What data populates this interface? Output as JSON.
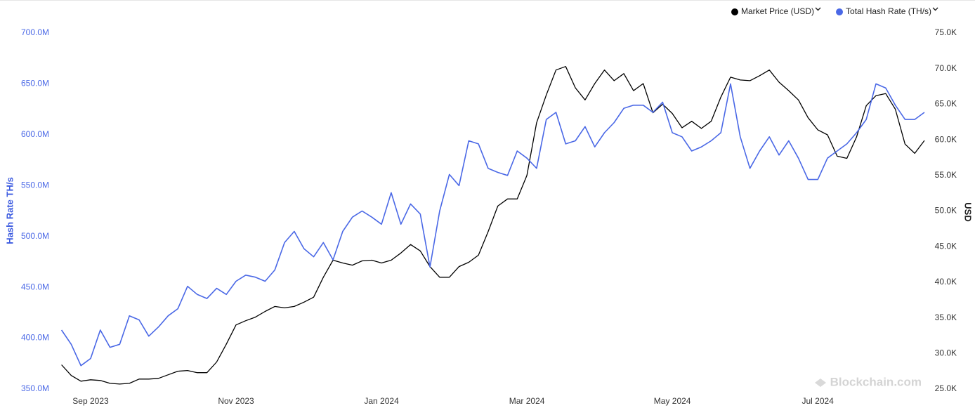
{
  "chart_data": {
    "type": "line",
    "categories": [
      null,
      null,
      null,
      "Sep 2023",
      null,
      null,
      null,
      null,
      null,
      null,
      null,
      null,
      null,
      null,
      null,
      null,
      null,
      null,
      "Nov 2023",
      null,
      null,
      null,
      null,
      null,
      null,
      null,
      null,
      null,
      null,
      null,
      null,
      null,
      null,
      "Jan 2024",
      null,
      null,
      null,
      null,
      null,
      null,
      null,
      null,
      null,
      null,
      null,
      null,
      null,
      null,
      "Mar 2024",
      null,
      null,
      null,
      null,
      null,
      null,
      null,
      null,
      null,
      null,
      null,
      null,
      null,
      null,
      "May 2024",
      null,
      null,
      null,
      null,
      null,
      null,
      null,
      null,
      null,
      null,
      null,
      null,
      null,
      null,
      "Jul 2024",
      null,
      null,
      null,
      null,
      null,
      null,
      null,
      null,
      null,
      null,
      null
    ],
    "series": [
      {
        "name": "Market Price (USD)",
        "color": "#000000",
        "axis": "y2",
        "values": [
          28400,
          26900,
          26100,
          26300,
          26200,
          25800,
          25700,
          25800,
          26400,
          26400,
          26500,
          27000,
          27500,
          27600,
          27300,
          27300,
          28800,
          31300,
          34000,
          34600,
          35100,
          35900,
          36600,
          36400,
          36600,
          37200,
          37900,
          40700,
          43100,
          42700,
          42400,
          43000,
          43100,
          42700,
          43100,
          44100,
          45300,
          44400,
          42200,
          40700,
          40700,
          42200,
          42800,
          43800,
          47100,
          50700,
          51700,
          51700,
          55000,
          62400,
          66300,
          69800,
          70300,
          67300,
          65600,
          67900,
          69800,
          68300,
          69300,
          66900,
          67900,
          63800,
          65000,
          63700,
          61700,
          62600,
          61600,
          62600,
          66000,
          68800,
          68400,
          68300,
          69000,
          69800,
          68100,
          66900,
          65600,
          63100,
          61400,
          60700,
          57700,
          57400,
          60400,
          64800,
          66200,
          66500,
          64300,
          59400,
          58100,
          59900
        ]
      },
      {
        "name": "Total Hash Rate (TH/s)",
        "color": "#4a68e6",
        "values": [
          408000000,
          394000000,
          373000000,
          380000000,
          408000000,
          391000000,
          394000000,
          422000000,
          418000000,
          402000000,
          411000000,
          422000000,
          429000000,
          451000000,
          443000000,
          439000000,
          449000000,
          443000000,
          456000000,
          462000000,
          460000000,
          456000000,
          467000000,
          494000000,
          505000000,
          488000000,
          480000000,
          494000000,
          477000000,
          505000000,
          519000000,
          525000000,
          519000000,
          512000000,
          543000000,
          512000000,
          532000000,
          522000000,
          470000000,
          525000000,
          561000000,
          550000000,
          594000000,
          591000000,
          567000000,
          563000000,
          560000000,
          584000000,
          577000000,
          567000000,
          615000000,
          622000000,
          591000000,
          594000000,
          608000000,
          588000000,
          602000000,
          612000000,
          626000000,
          629000000,
          629000000,
          622000000,
          632000000,
          602000000,
          598000000,
          584000000,
          588000000,
          594000000,
          602000000,
          650000000,
          598000000,
          567000000,
          584000000,
          598000000,
          580000000,
          594000000,
          577000000,
          556000000,
          556000000,
          577000000,
          584000000,
          591000000,
          602000000,
          615000000,
          650000000,
          646000000,
          629000000,
          615000000,
          615000000,
          622000000
        ]
      }
    ],
    "y_label": "Hash Rate TH/s",
    "y2_label": "USD",
    "ylim": [
      350000000,
      700000000
    ],
    "yticks": [
      {
        "value": 350000000,
        "label": "350.0M"
      },
      {
        "value": 400000000,
        "label": "400.0M"
      },
      {
        "value": 450000000,
        "label": "450.0M"
      },
      {
        "value": 500000000,
        "label": "500.0M"
      },
      {
        "value": 550000000,
        "label": "550.0M"
      },
      {
        "value": 600000000,
        "label": "600.0M"
      },
      {
        "value": 650000000,
        "label": "650.0M"
      },
      {
        "value": 700000000,
        "label": "700.0M"
      }
    ],
    "y2lim": [
      25000,
      75000
    ],
    "y2ticks": [
      {
        "value": 25000,
        "label": "25.0K"
      },
      {
        "value": 30000,
        "label": "30.0K"
      },
      {
        "value": 35000,
        "label": "35.0K"
      },
      {
        "value": 40000,
        "label": "40.0K"
      },
      {
        "value": 45000,
        "label": "45.0K"
      },
      {
        "value": 50000,
        "label": "50.0K"
      },
      {
        "value": 55000,
        "label": "55.0K"
      },
      {
        "value": 60000,
        "label": "60.0K"
      },
      {
        "value": 65000,
        "label": "65.0K"
      },
      {
        "value": 70000,
        "label": "70.0K"
      },
      {
        "value": 75000,
        "label": "75.0K"
      }
    ],
    "legend": "top-right",
    "watermark": "Blockchain.com"
  }
}
